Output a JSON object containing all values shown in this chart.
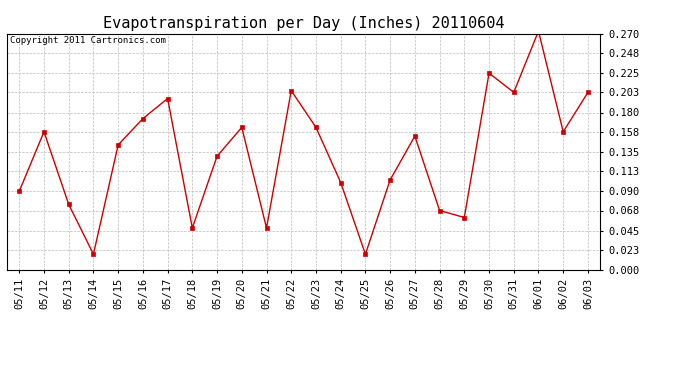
{
  "title": "Evapotranspiration per Day (Inches) 20110604",
  "copyright": "Copyright 2011 Cartronics.com",
  "dates": [
    "05/11",
    "05/12",
    "05/13",
    "05/14",
    "05/15",
    "05/16",
    "05/17",
    "05/18",
    "05/19",
    "05/20",
    "05/21",
    "05/22",
    "05/23",
    "05/24",
    "05/25",
    "05/26",
    "05/27",
    "05/28",
    "05/29",
    "05/30",
    "05/31",
    "06/01",
    "06/02",
    "06/03"
  ],
  "values": [
    0.09,
    0.158,
    0.075,
    0.018,
    0.143,
    0.173,
    0.196,
    0.048,
    0.13,
    0.163,
    0.048,
    0.205,
    0.163,
    0.1,
    0.018,
    0.103,
    0.153,
    0.068,
    0.06,
    0.225,
    0.203,
    0.273,
    0.158,
    0.203
  ],
  "line_color": "#cc0000",
  "marker": "s",
  "marker_size": 2.5,
  "marker_face_color": "#cc0000",
  "background_color": "#ffffff",
  "grid_color": "#bbbbbb",
  "ylim": [
    0.0,
    0.27
  ],
  "yticks": [
    0.0,
    0.023,
    0.045,
    0.068,
    0.09,
    0.113,
    0.135,
    0.158,
    0.18,
    0.203,
    0.225,
    0.248,
    0.27
  ],
  "title_fontsize": 11,
  "copyright_fontsize": 6.5,
  "tick_fontsize": 7.5
}
